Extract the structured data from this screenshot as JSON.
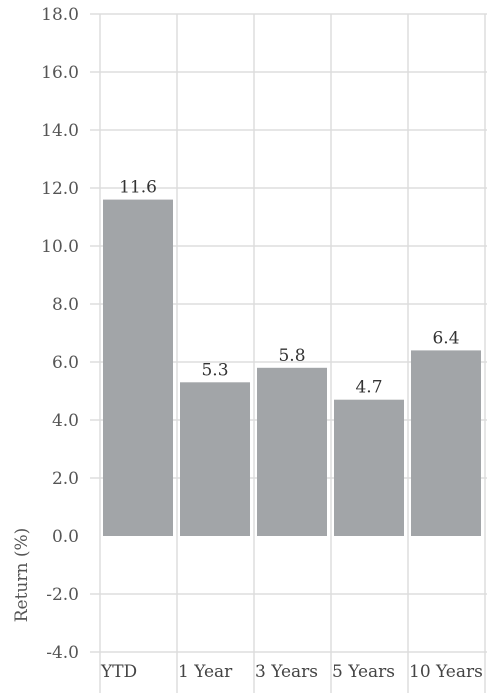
{
  "chart_data": {
    "type": "bar",
    "title": "",
    "xlabel": "",
    "ylabel": "Return (%)",
    "categories": [
      "YTD",
      "1 Year",
      "3 Years",
      "5 Years",
      "10 Years"
    ],
    "values": [
      11.6,
      5.3,
      5.8,
      4.7,
      6.4
    ],
    "value_labels": [
      "11.6",
      "5.3",
      "5.8",
      "4.7",
      "6.4"
    ],
    "ylim": [
      -4.0,
      18.0
    ],
    "y_ticks": [
      "18.0",
      "16.0",
      "14.0",
      "12.0",
      "10.0",
      "8.0",
      "6.0",
      "4.0",
      "2.0",
      "0.0",
      "-2.0",
      "-4.0"
    ],
    "y_tick_values": [
      18,
      16,
      14,
      12,
      10,
      8,
      6,
      4,
      2,
      0,
      -2,
      -4
    ],
    "grid": true,
    "legend": "none",
    "colors": {
      "bar": "#a2a5a8",
      "grid": "#dddddd",
      "zero_line": "#ffffff"
    }
  }
}
